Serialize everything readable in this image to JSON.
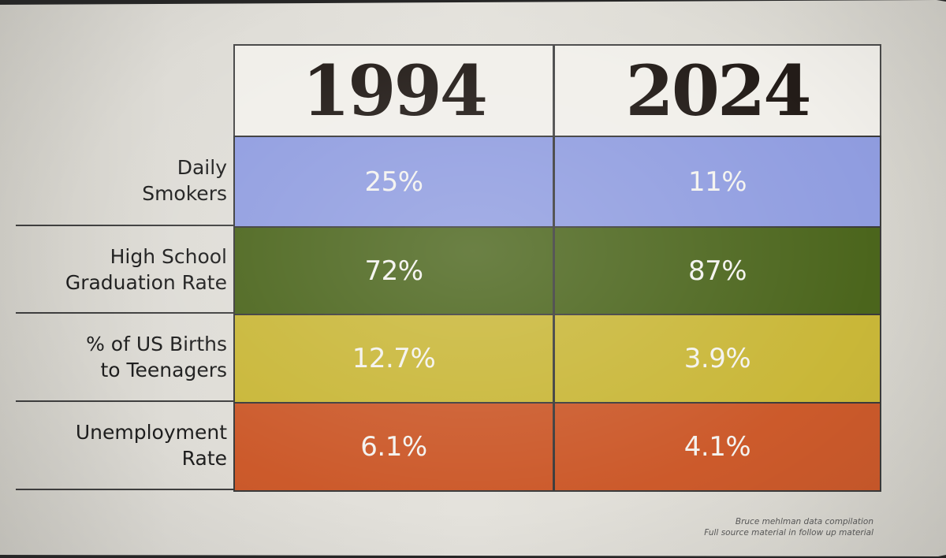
{
  "chart_data": {
    "type": "table",
    "columns": [
      "1994",
      "2024"
    ],
    "rows": [
      {
        "label": "Daily\nSmokers",
        "values": [
          "25%",
          "11%"
        ],
        "color": "#909de0"
      },
      {
        "label": "High School\nGraduation Rate",
        "values": [
          "72%",
          "87%"
        ],
        "color": "#4b651c"
      },
      {
        "label": "% of US Births\nto Teenagers",
        "values": [
          "12.7%",
          "3.9%"
        ],
        "color": "#c9b738"
      },
      {
        "label": "Unemployment\nRate",
        "values": [
          "6.1%",
          "4.1%"
        ],
        "color": "#cc5a2b"
      }
    ]
  },
  "footnote": {
    "line1": "Bruce mehlman data compilation",
    "line2": "Full source material in follow up material"
  }
}
